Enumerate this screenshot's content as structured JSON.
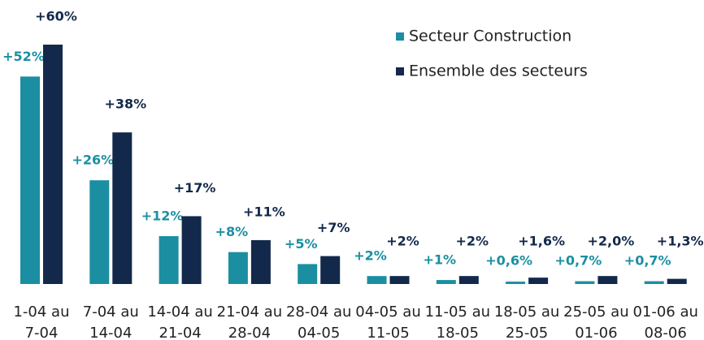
{
  "chart_data": {
    "type": "bar",
    "categories": [
      "1-04 au 7-04",
      "7-04 au 14-04",
      "14-04 au 21-04",
      "21-04 au 28-04",
      "28-04 au 04-05",
      "04-05 au 11-05",
      "11-05 au 18-05",
      "18-05 au 25-05",
      "25-05 au 01-06",
      "01-06 au 08-06"
    ],
    "series": [
      {
        "name": "Secteur Construction",
        "color": "#1b8fa1",
        "values": [
          52,
          26,
          12,
          8,
          5,
          2,
          1,
          0.6,
          0.7,
          0.7
        ],
        "value_labels": [
          "+52%",
          "+26%",
          "+12%",
          "+8%",
          "+5%",
          "+2%",
          "+1%",
          "+0,6%",
          "+0,7%",
          "+0,7%"
        ]
      },
      {
        "name": "Ensemble des secteurs",
        "color": "#13294b",
        "values": [
          60,
          38,
          17,
          11,
          7,
          2,
          2,
          1.6,
          2.0,
          1.3
        ],
        "value_labels": [
          "+60%",
          "+38%",
          "+17%",
          "+11%",
          "+7%",
          "+2%",
          "+2%",
          "+1,6%",
          "+2,0%",
          "+1,3%"
        ]
      }
    ],
    "ylim": [
      0,
      60
    ],
    "legend": "top-right"
  }
}
